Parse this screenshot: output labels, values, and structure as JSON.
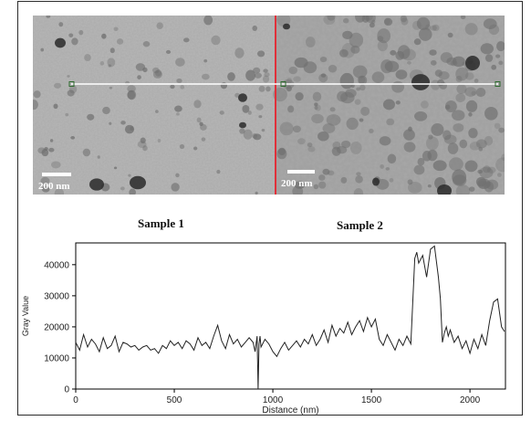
{
  "figure": {
    "scale_bar_left": "200 nm",
    "scale_bar_right": "200 nm",
    "sample_1_label": "Sample 1",
    "sample_2_label": "Sample 2",
    "colors": {
      "divider": "#e0303a",
      "line_profile_marker": "#ffffff",
      "plot_line": "#222222"
    }
  },
  "chart_data": {
    "type": "line",
    "xlabel": "Distance (nm)",
    "ylabel": "Gray Value",
    "xlim": [
      0,
      2180
    ],
    "ylim": [
      0,
      47000
    ],
    "xticks": [
      0,
      500,
      1000,
      1500,
      2000
    ],
    "yticks": [
      0,
      10000,
      20000,
      30000,
      40000
    ],
    "grid": false,
    "series": [
      {
        "x": [
          0,
          20,
          40,
          60,
          80,
          100,
          120,
          140,
          160,
          180,
          200,
          220,
          240,
          260,
          280,
          300,
          320,
          340,
          360,
          380,
          400,
          420,
          440,
          460,
          480,
          500,
          520,
          540,
          560,
          580,
          600,
          620,
          640,
          660,
          680,
          700,
          720,
          740,
          760,
          780,
          800,
          820,
          840,
          860,
          880,
          900,
          910,
          920,
          925,
          930,
          935,
          940,
          960,
          980,
          1000,
          1020,
          1040,
          1060,
          1080,
          1100,
          1120,
          1140,
          1160,
          1180,
          1200,
          1220,
          1240,
          1260,
          1280,
          1300,
          1320,
          1340,
          1360,
          1380,
          1400,
          1420,
          1440,
          1460,
          1480,
          1500,
          1520,
          1540,
          1560,
          1580,
          1600,
          1620,
          1640,
          1660,
          1680,
          1700,
          1720,
          1730,
          1740,
          1760,
          1780,
          1800,
          1820,
          1840,
          1850,
          1860,
          1870,
          1880,
          1890,
          1900,
          1920,
          1940,
          1960,
          1980,
          2000,
          2020,
          2040,
          2060,
          2080,
          2100,
          2120,
          2140,
          2160,
          2175
        ],
        "values": [
          15000,
          12500,
          17500,
          13500,
          16000,
          14500,
          12000,
          16500,
          13000,
          14000,
          17000,
          12000,
          15000,
          14500,
          13500,
          14000,
          12500,
          13500,
          14000,
          12500,
          13000,
          11500,
          14000,
          13000,
          15500,
          14000,
          15000,
          13000,
          15500,
          14500,
          12500,
          16500,
          14000,
          15000,
          13000,
          17000,
          20500,
          15500,
          13000,
          17500,
          14500,
          16000,
          13500,
          15000,
          16500,
          15000,
          12000,
          17000,
          0,
          14500,
          17000,
          13500,
          16000,
          14500,
          12000,
          10500,
          13000,
          15000,
          12500,
          14000,
          15500,
          13500,
          16000,
          14500,
          17500,
          14000,
          16000,
          19000,
          15000,
          20500,
          17000,
          19500,
          18000,
          21500,
          17500,
          20000,
          22000,
          18500,
          23000,
          20000,
          22500,
          16000,
          14000,
          17500,
          15000,
          12500,
          16000,
          14000,
          17000,
          14500,
          42000,
          44000,
          40500,
          43000,
          36000,
          45000,
          46000,
          36000,
          29000,
          15000,
          18000,
          20000,
          17000,
          19000,
          15000,
          17000,
          13000,
          15500,
          11500,
          16000,
          13000,
          17500,
          14000,
          22000,
          28000,
          29000,
          20000,
          18500
        ]
      }
    ]
  }
}
